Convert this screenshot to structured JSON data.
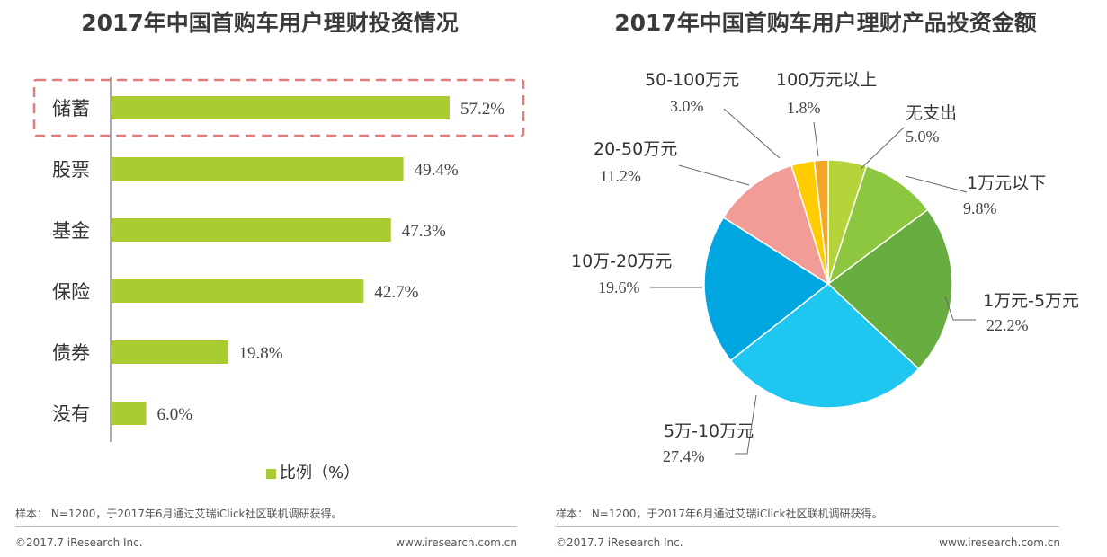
{
  "charts": [
    {
      "id": "left",
      "footer": {
        "note": "样本： N=1200，于2017年6月通过艾瑞iClick社区联机调研获得。",
        "copyright": "©2017.7 iResearch Inc.",
        "website": "www.iresearch.com.cn"
      }
    },
    {
      "id": "right",
      "footer": {
        "note": "样本： N=1200，于2017年6月通过艾瑞iClick社区联机调研获得。",
        "copyright": "©2017.7 iResearch Inc.",
        "website": "www.iresearch.com.cn"
      }
    }
  ],
  "chart_data": [
    {
      "type": "bar",
      "orientation": "horizontal",
      "title": "2017年中国首购车用户理财投资情况",
      "categories": [
        "储蓄",
        "股票",
        "基金",
        "保险",
        "债券",
        "没有"
      ],
      "values": [
        57.2,
        49.4,
        47.3,
        42.7,
        19.8,
        6.0
      ],
      "value_labels": [
        "57.2%",
        "49.4%",
        "47.3%",
        "42.7%",
        "19.8%",
        "6.0%"
      ],
      "series_name": "比例（%）",
      "xlim": [
        0,
        70
      ],
      "highlighted_category": "储蓄",
      "bar_color": "#a9cc33",
      "highlight_color": "#e07c7c",
      "grid": false,
      "legend": "bottom"
    },
    {
      "type": "pie",
      "title": "2017年中国首购车用户理财产品投资金额",
      "slices": [
        {
          "name": "无支出",
          "value": 5.0,
          "label": "5.0%",
          "color": "#b5d43b"
        },
        {
          "name": "1万元以下",
          "value": 9.8,
          "label": "9.8%",
          "color": "#8dc63f"
        },
        {
          "name": "1万元-5万元",
          "value": 22.2,
          "label": "22.2%",
          "color": "#67ad40"
        },
        {
          "name": "5万-10万元",
          "value": 27.4,
          "label": "27.4%",
          "color": "#1ec6f0"
        },
        {
          "name": "10万-20万元",
          "value": 19.6,
          "label": "19.6%",
          "color": "#00a6e0"
        },
        {
          "name": "20-50万元",
          "value": 11.2,
          "label": "11.2%",
          "color": "#f29c98"
        },
        {
          "name": "50-100万元",
          "value": 3.0,
          "label": "3.0%",
          "color": "#ffcc00"
        },
        {
          "name": "100万元以上",
          "value": 1.8,
          "label": "1.8%",
          "color": "#f5a623"
        }
      ],
      "start_angle": "12 o'clock",
      "direction": "clockwise"
    }
  ]
}
